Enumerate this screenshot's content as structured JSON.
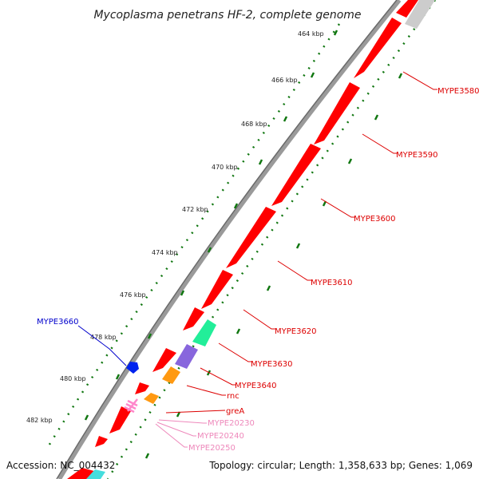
{
  "title": "Mycoplasma penetrans HF-2, complete genome",
  "scale_labels": [
    "464 kbp",
    "466 kbp",
    "468 kbp",
    "470 kbp",
    "472 kbp",
    "474 kbp",
    "476 kbp",
    "478 kbp",
    "480 kbp",
    "482 kbp"
  ],
  "gene_labels": {
    "mype3580": "MYPE3580",
    "mype3590": "MYPE3590",
    "mype3600": "MYPE3600",
    "mype3610": "MYPE3610",
    "mype3620": "MYPE3620",
    "mype3630": "MYPE3630",
    "mype3640": "MYPE3640",
    "rnc": "rnc",
    "greA": "greA",
    "mype20230": "MYPE20230",
    "mype20240": "MYPE20240",
    "mype20250": "MYPE20250",
    "mype3660": "MYPE3660"
  },
  "footer": {
    "accession": "Accession: NC_004432",
    "topology": "Topology: circular; Length: 1,358,633 bp; Genes: 1,069"
  },
  "colors": {
    "cds": "#ff0000",
    "label_red": "#dd0000",
    "label_pink": "#ee88bb",
    "label_blue": "#0000cc",
    "scale_green": "#117711",
    "backbone": "#888888",
    "green_feature": "#22ee99",
    "purple_feature": "#8866dd",
    "orange_feature": "#ff9911",
    "blue_feature": "#0022ee",
    "pink_feature": "#ff88cc",
    "cyan_feature": "#44dddd"
  }
}
